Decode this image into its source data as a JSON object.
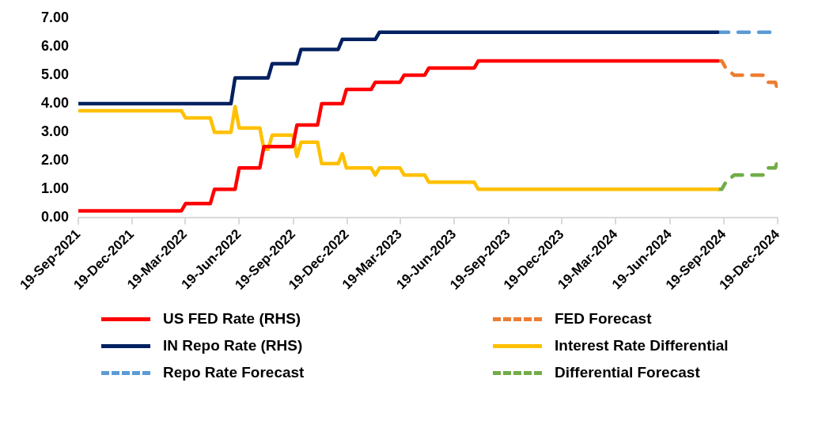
{
  "chart_data": {
    "type": "line",
    "legend": "bottom",
    "grid": false,
    "marker": "none",
    "xlim": [
      "2021-09-19",
      "2024-12-19"
    ],
    "xticks": [
      {
        "value": "2021-09-19",
        "label": "19-Sep-2021"
      },
      {
        "value": "2021-12-19",
        "label": "19-Dec-2021"
      },
      {
        "value": "2022-03-19",
        "label": "19-Mar-2022"
      },
      {
        "value": "2022-06-19",
        "label": "19-Jun-2022"
      },
      {
        "value": "2022-09-19",
        "label": "19-Sep-2022"
      },
      {
        "value": "2022-12-19",
        "label": "19-Dec-2022"
      },
      {
        "value": "2023-03-19",
        "label": "19-Mar-2023"
      },
      {
        "value": "2023-06-19",
        "label": "19-Jun-2023"
      },
      {
        "value": "2023-09-19",
        "label": "19-Sep-2023"
      },
      {
        "value": "2023-12-19",
        "label": "19-Dec-2023"
      },
      {
        "value": "2024-03-19",
        "label": "19-Mar-2024"
      },
      {
        "value": "2024-06-19",
        "label": "19-Jun-2024"
      },
      {
        "value": "2024-09-19",
        "label": "19-Sep-2024"
      },
      {
        "value": "2024-12-19",
        "label": "19-Dec-2024"
      }
    ],
    "ylim": [
      0,
      7
    ],
    "yticks": [
      {
        "value": 0,
        "label": "0.00"
      },
      {
        "value": 1,
        "label": "1.00"
      },
      {
        "value": 2,
        "label": "2.00"
      },
      {
        "value": 3,
        "label": "3.00"
      },
      {
        "value": 4,
        "label": "4.00"
      },
      {
        "value": 5,
        "label": "5.00"
      },
      {
        "value": 6,
        "label": "6.00"
      },
      {
        "value": 7,
        "label": "7.00"
      }
    ],
    "series": [
      {
        "name": "US FED Rate (RHS)",
        "color": "#ff0000",
        "line_style": "solid",
        "x": [
          "2021-09-19",
          "2022-03-13",
          "2022-03-20",
          "2022-05-01",
          "2022-05-08",
          "2022-06-12",
          "2022-06-19",
          "2022-07-24",
          "2022-07-31",
          "2022-09-18",
          "2022-09-25",
          "2022-10-30",
          "2022-11-06",
          "2022-12-11",
          "2022-12-18",
          "2023-01-29",
          "2023-02-05",
          "2023-03-19",
          "2023-03-26",
          "2023-04-30",
          "2023-05-07",
          "2023-07-23",
          "2023-07-30",
          "2024-09-08"
        ],
        "values": [
          0.25,
          0.25,
          0.5,
          0.5,
          1.0,
          1.0,
          1.75,
          1.75,
          2.5,
          2.5,
          3.25,
          3.25,
          4.0,
          4.0,
          4.5,
          4.5,
          4.75,
          4.75,
          5.0,
          5.0,
          5.25,
          5.25,
          5.5,
          5.5
        ]
      },
      {
        "name": "FED Forecast",
        "color": "#ed7d31",
        "line_style": "dashed",
        "x": [
          "2024-09-08",
          "2024-09-15",
          "2024-09-22",
          "2024-10-06",
          "2024-11-24",
          "2024-12-01",
          "2024-12-15",
          "2024-12-19"
        ],
        "values": [
          5.5,
          5.5,
          5.25,
          5.0,
          5.0,
          4.75,
          4.75,
          4.5
        ]
      },
      {
        "name": "IN Repo Rate (RHS)",
        "color": "#002060",
        "line_style": "solid",
        "x": [
          "2021-09-19",
          "2022-06-05",
          "2022-06-12",
          "2022-08-07",
          "2022-08-14",
          "2022-09-25",
          "2022-10-02",
          "2022-12-04",
          "2022-12-11",
          "2023-02-05",
          "2023-02-12",
          "2024-09-08"
        ],
        "values": [
          4.0,
          4.0,
          4.9,
          4.9,
          5.4,
          5.4,
          5.9,
          5.9,
          6.25,
          6.25,
          6.5,
          6.5
        ]
      },
      {
        "name": "Interest Rate Differential",
        "color": "#ffc000",
        "line_style": "solid",
        "x": [
          "2021-09-19",
          "2022-03-13",
          "2022-03-20",
          "2022-05-01",
          "2022-05-08",
          "2022-06-05",
          "2022-06-12",
          "2022-06-19",
          "2022-07-24",
          "2022-07-31",
          "2022-08-07",
          "2022-08-14",
          "2022-09-18",
          "2022-09-25",
          "2022-10-02",
          "2022-10-30",
          "2022-11-06",
          "2022-12-04",
          "2022-12-11",
          "2022-12-18",
          "2023-01-29",
          "2023-02-05",
          "2023-02-12",
          "2023-03-19",
          "2023-03-26",
          "2023-04-30",
          "2023-05-07",
          "2023-07-23",
          "2023-07-30",
          "2024-09-08"
        ],
        "values": [
          3.75,
          3.75,
          3.5,
          3.5,
          3.0,
          3.0,
          3.9,
          3.15,
          3.15,
          2.4,
          2.4,
          2.9,
          2.9,
          2.15,
          2.65,
          2.65,
          1.9,
          1.9,
          2.25,
          1.75,
          1.75,
          1.5,
          1.75,
          1.75,
          1.5,
          1.5,
          1.25,
          1.25,
          1.0,
          1.0
        ]
      },
      {
        "name": "Repo Rate Forecast",
        "color": "#5b9bd5",
        "line_style": "dashed",
        "x": [
          "2024-09-08",
          "2024-12-19"
        ],
        "values": [
          6.5,
          6.5
        ]
      },
      {
        "name": "Differential Forecast",
        "color": "#70ad47",
        "line_style": "dashed",
        "x": [
          "2024-09-08",
          "2024-09-15",
          "2024-09-22",
          "2024-10-06",
          "2024-11-24",
          "2024-12-01",
          "2024-12-15",
          "2024-12-19"
        ],
        "values": [
          1.0,
          1.0,
          1.25,
          1.5,
          1.5,
          1.75,
          1.75,
          2.0
        ]
      }
    ]
  }
}
